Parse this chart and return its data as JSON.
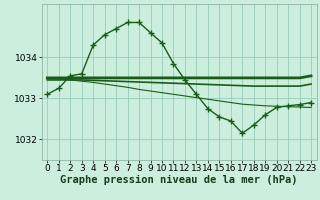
{
  "xlabel": "Graphe pression niveau de la mer (hPa)",
  "background_color": "#cceedd",
  "grid_color": "#99ccbb",
  "line_color": "#1a5c1a",
  "xlim": [
    -0.5,
    23.5
  ],
  "ylim": [
    1031.5,
    1035.3
  ],
  "yticks": [
    1032,
    1033,
    1034
  ],
  "xticks": [
    0,
    1,
    2,
    3,
    4,
    5,
    6,
    7,
    8,
    9,
    10,
    11,
    12,
    13,
    14,
    15,
    16,
    17,
    18,
    19,
    20,
    21,
    22,
    23
  ],
  "x": [
    0,
    1,
    2,
    3,
    4,
    5,
    6,
    7,
    8,
    9,
    10,
    11,
    12,
    13,
    14,
    15,
    16,
    17,
    18,
    19,
    20,
    21,
    22,
    23
  ],
  "y_instant": [
    1033.1,
    1033.25,
    1033.55,
    1033.6,
    1034.3,
    1034.55,
    1034.7,
    1034.85,
    1034.85,
    1034.6,
    1034.35,
    1033.85,
    1033.45,
    1033.1,
    1032.75,
    1032.55,
    1032.45,
    1032.15,
    1032.35,
    1032.6,
    1032.78,
    1032.82,
    1032.85,
    1032.9
  ],
  "y_flat_high": [
    1033.5,
    1033.5,
    1033.5,
    1033.5,
    1033.5,
    1033.5,
    1033.5,
    1033.5,
    1033.5,
    1033.5,
    1033.5,
    1033.5,
    1033.5,
    1033.5,
    1033.5,
    1033.5,
    1033.5,
    1033.5,
    1033.5,
    1033.5,
    1033.5,
    1033.5,
    1033.5,
    1033.55
  ],
  "y_flat_mid": [
    1033.45,
    1033.45,
    1033.45,
    1033.45,
    1033.44,
    1033.43,
    1033.42,
    1033.41,
    1033.4,
    1033.39,
    1033.38,
    1033.37,
    1033.36,
    1033.35,
    1033.34,
    1033.33,
    1033.32,
    1033.31,
    1033.3,
    1033.3,
    1033.3,
    1033.3,
    1033.3,
    1033.35
  ],
  "y_declining": [
    1033.5,
    1033.48,
    1033.45,
    1033.42,
    1033.39,
    1033.35,
    1033.31,
    1033.27,
    1033.22,
    1033.18,
    1033.14,
    1033.1,
    1033.06,
    1033.02,
    1032.98,
    1032.94,
    1032.9,
    1032.86,
    1032.84,
    1032.82,
    1032.81,
    1032.8,
    1032.79,
    1032.78
  ],
  "tick_fontsize": 6.5,
  "label_fontsize": 7.5
}
